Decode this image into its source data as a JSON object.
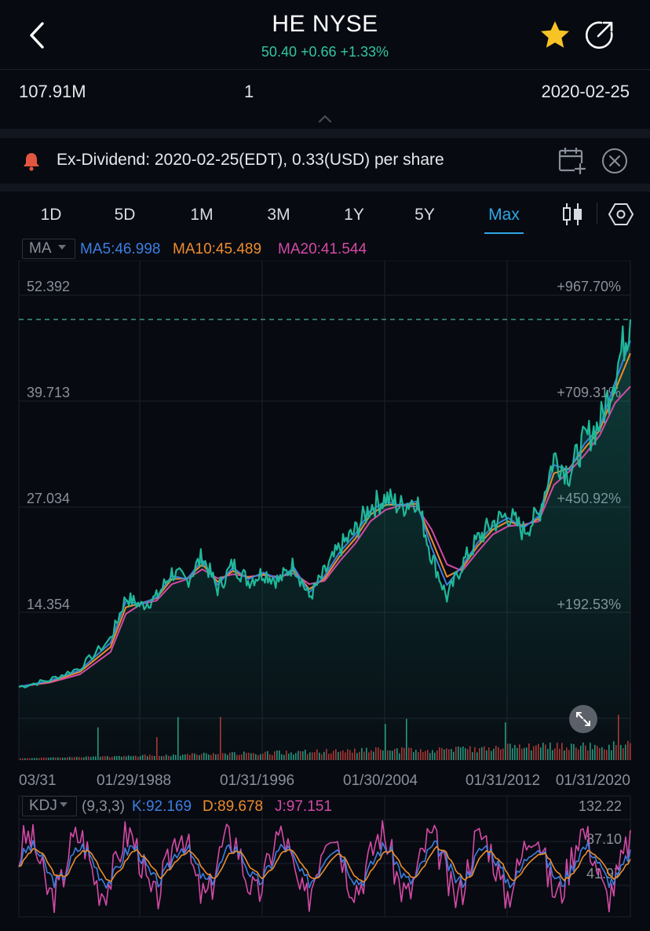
{
  "header": {
    "title": "HE NYSE",
    "price_line": "50.40 +0.66 +1.33%"
  },
  "stats": {
    "volume": "107.91M",
    "middle": "1",
    "date": "2020-02-25"
  },
  "dividend": {
    "text": "Ex-Dividend: 2020-02-25(EDT), 0.33(USD) per share"
  },
  "tabs": [
    {
      "label": "1D"
    },
    {
      "label": "5D"
    },
    {
      "label": "1M"
    },
    {
      "label": "3M"
    },
    {
      "label": "1Y"
    },
    {
      "label": "5Y"
    },
    {
      "label": "Max"
    }
  ],
  "ma": {
    "selector": "MA",
    "ma5": "MA5:46.998",
    "ma10": "MA10:45.489",
    "ma20": "MA20:41.544"
  },
  "kdj": {
    "selector": "KDJ",
    "params": "(9,3,3)",
    "k": "K:92.169",
    "d": "D:89.678",
    "j": "J:97.151"
  },
  "colors": {
    "price_line": "#1fb89a",
    "ma5": "#3d7fe0",
    "ma10": "#ef8c2d",
    "ma20": "#d44aa6",
    "up": "#32c6a0",
    "down": "#e2473f",
    "active_tab": "#2fa7e6"
  },
  "chart_data": [
    {
      "type": "line",
      "y_ticks": [
        "52.392",
        "39.713",
        "27.034",
        "14.354"
      ],
      "y_right_ticks": [
        "+967.70%",
        "+709.31%",
        "+450.92%",
        "+192.53%"
      ],
      "x_ticks": [
        "03/31",
        "01/29/1988",
        "01/31/1996",
        "01/30/2004",
        "01/31/2012",
        "01/31/2020"
      ],
      "ylim": [
        4.9,
        55
      ],
      "x": [
        1980,
        1982,
        1984,
        1986,
        1987,
        1988,
        1989,
        1990,
        1991,
        1992,
        1993,
        1994,
        1995,
        1996,
        1997,
        1998,
        1999,
        2000,
        2001,
        2002,
        2003,
        2004,
        2005,
        2006,
        2007,
        2008,
        2009,
        2010,
        2011,
        2012,
        2013,
        2014,
        2015,
        2016,
        2017,
        2018,
        2019,
        2020
      ],
      "series": [
        {
          "name": "Price",
          "values": [
            5.2,
            6.0,
            7.5,
            11,
            16,
            15,
            16,
            19,
            18,
            21,
            17,
            20,
            18,
            19,
            18,
            20,
            16,
            19,
            22,
            24,
            27,
            28,
            27,
            28,
            21,
            16,
            20,
            23,
            25,
            26,
            24,
            26,
            33,
            31,
            35,
            37,
            43,
            49.6
          ]
        },
        {
          "name": "MA5",
          "values": [
            5.2,
            5.9,
            7.2,
            10.5,
            15.5,
            15.2,
            16,
            18.6,
            18.2,
            20.5,
            17.5,
            19.6,
            18.2,
            19,
            18.2,
            19.6,
            16.6,
            18.6,
            21.5,
            23.6,
            26.5,
            27.6,
            27.1,
            27.6,
            22,
            17.5,
            19.8,
            22.6,
            24.6,
            25.6,
            24.4,
            25.8,
            32,
            31.4,
            34.6,
            36.6,
            42,
            47
          ]
        },
        {
          "name": "MA10",
          "values": [
            5.2,
            5.8,
            7.0,
            10,
            14.8,
            15.3,
            15.9,
            18.2,
            18.3,
            20,
            17.9,
            19.2,
            18.4,
            18.8,
            18.3,
            19.3,
            17,
            18.3,
            21,
            23.1,
            26,
            27.2,
            27.2,
            27.3,
            23,
            18.5,
            19.5,
            22.2,
            24.2,
            25.2,
            24.6,
            25.5,
            31,
            31.6,
            34,
            36.2,
            41,
            45.5
          ]
        },
        {
          "name": "MA20",
          "values": [
            5.2,
            5.7,
            6.7,
            9.4,
            14,
            15.2,
            15.6,
            17.6,
            18.2,
            19.4,
            18.3,
            18.8,
            18.5,
            18.7,
            18.5,
            18.9,
            17.6,
            18,
            20.4,
            22.5,
            25.2,
            26.6,
            27.1,
            27,
            24.2,
            20,
            19.2,
            21.5,
            23.6,
            24.6,
            24.8,
            25.2,
            29.6,
            31.2,
            33.2,
            35.6,
            39.5,
            41.5
          ]
        }
      ]
    },
    {
      "type": "line",
      "y_ticks": [
        "132.22",
        "87.10",
        "41.97"
      ],
      "series": [
        {
          "name": "K",
          "values": []
        },
        {
          "name": "D",
          "values": []
        },
        {
          "name": "J",
          "values": []
        }
      ]
    }
  ]
}
